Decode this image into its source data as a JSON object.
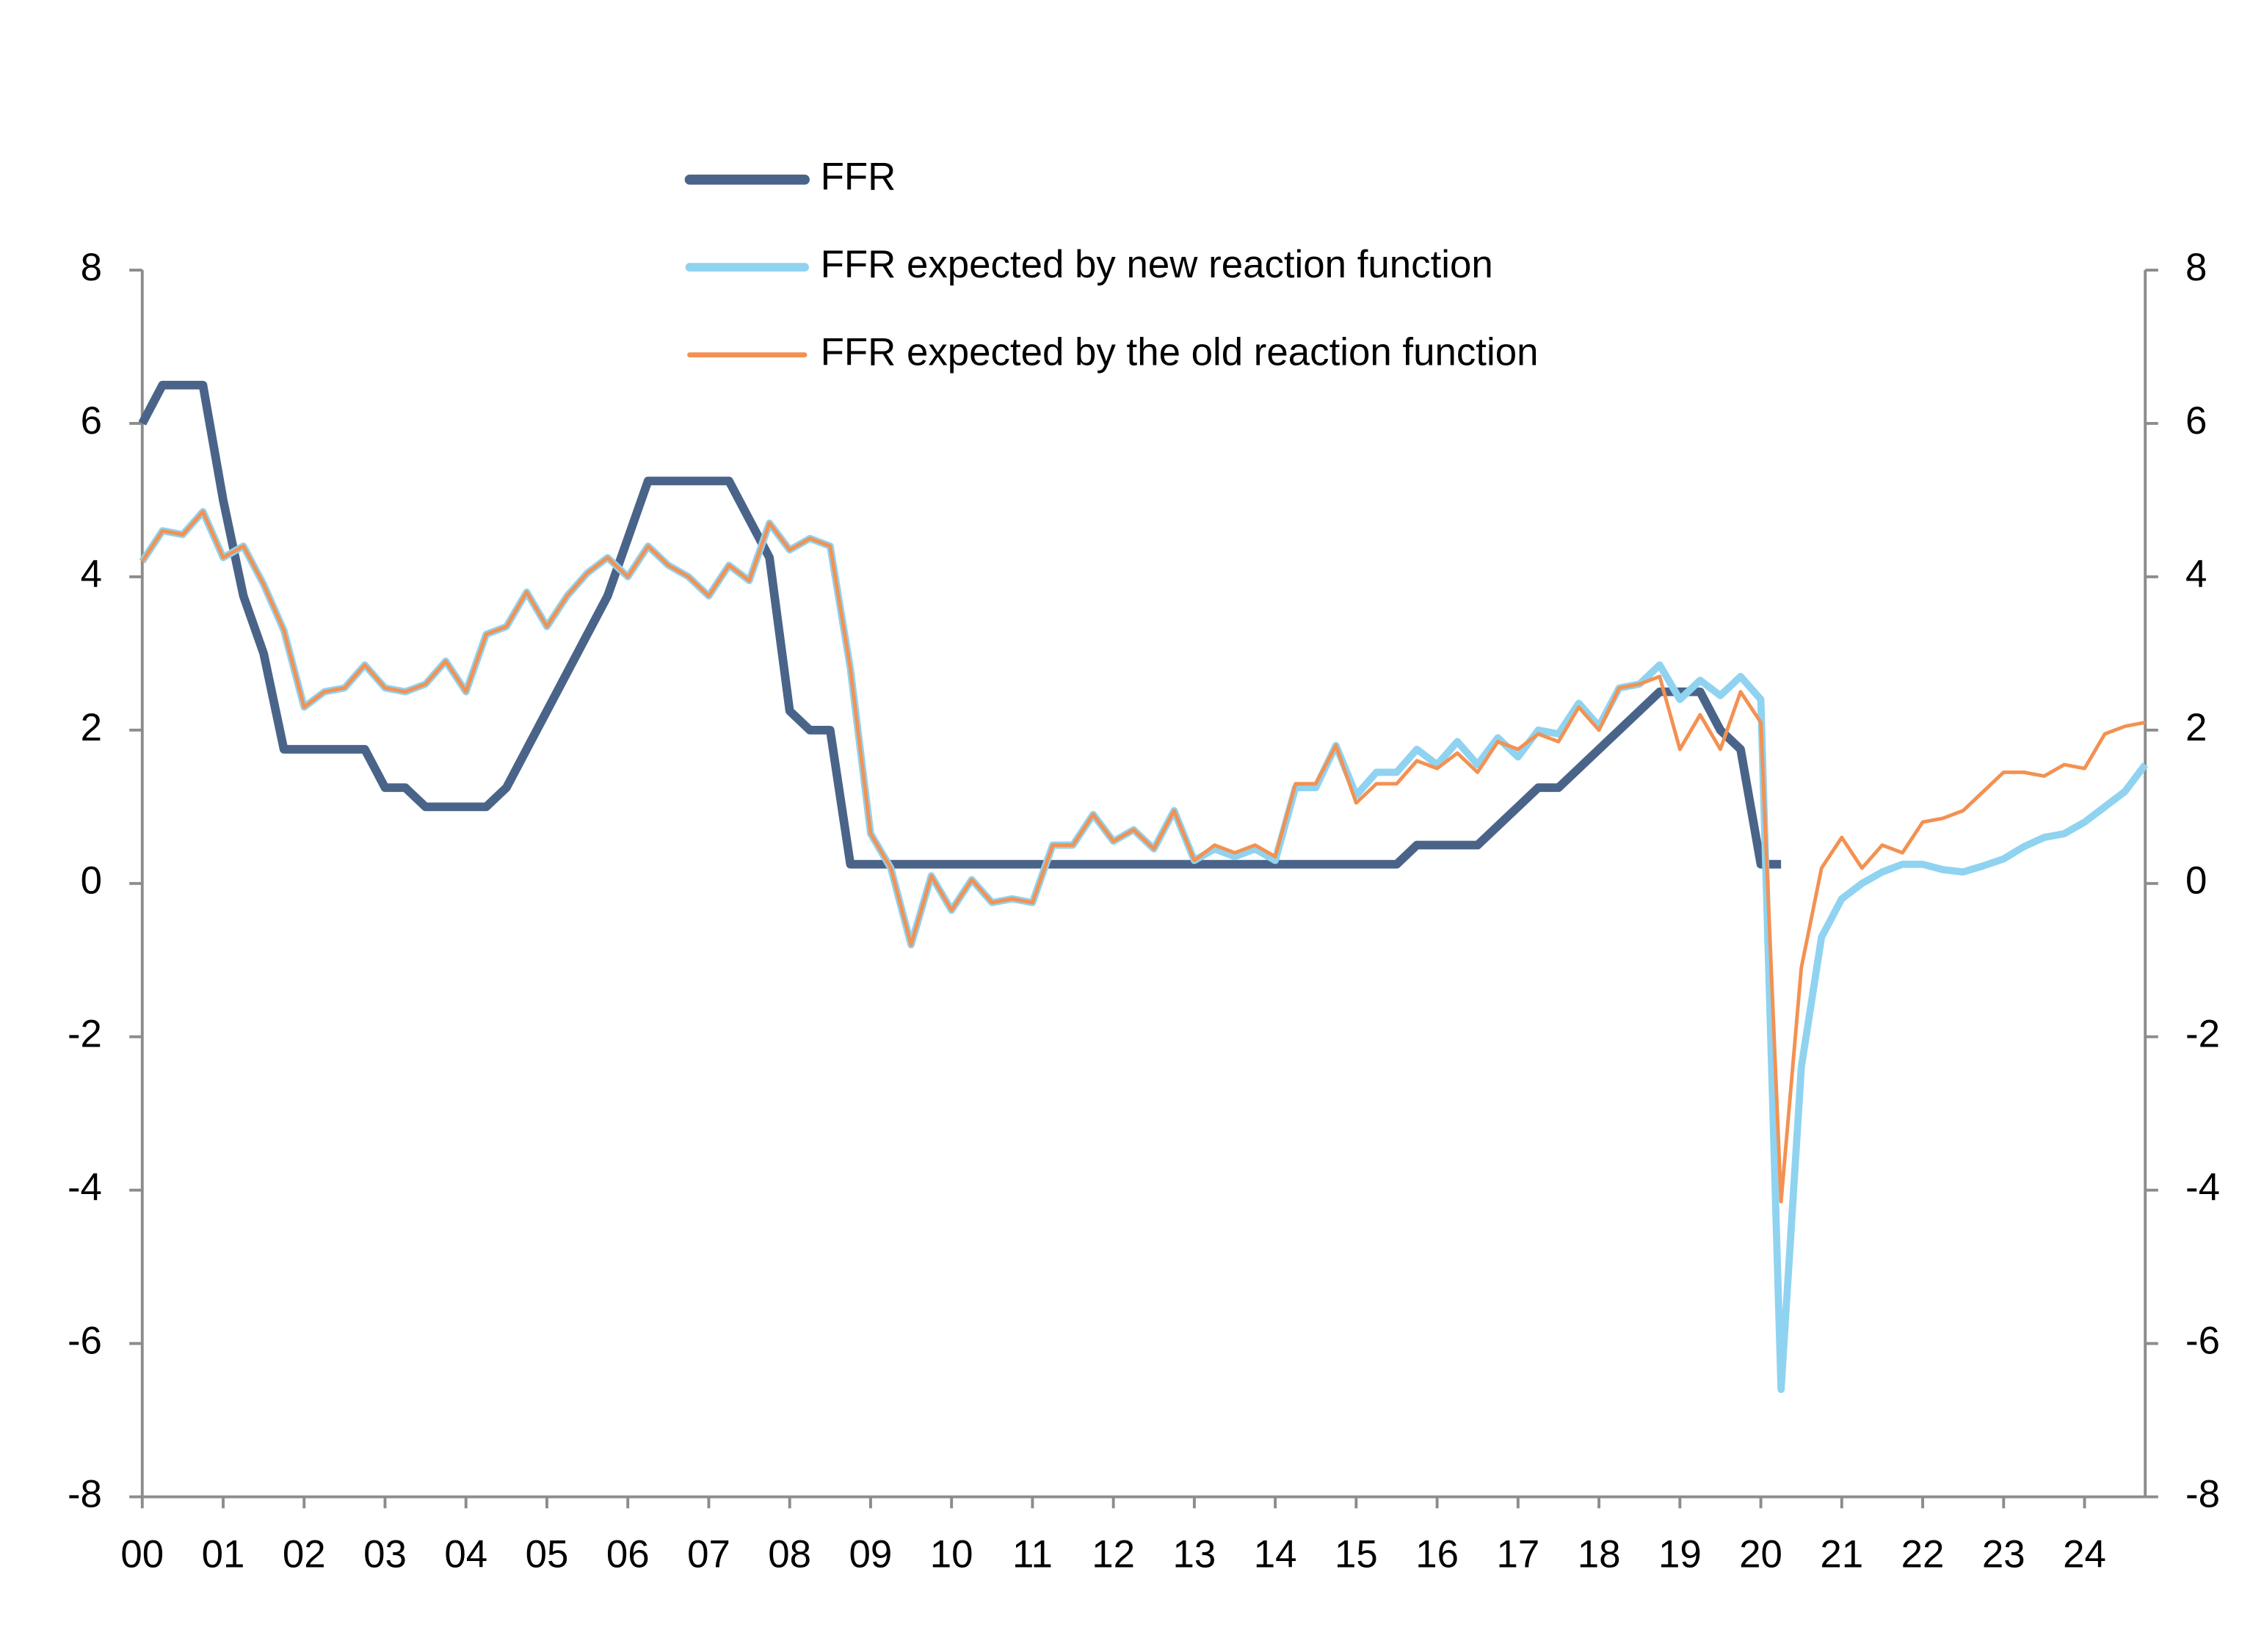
{
  "chart_data": {
    "type": "line",
    "categories": [
      "00",
      null,
      null,
      null,
      "01",
      null,
      null,
      null,
      "02",
      null,
      null,
      null,
      "03",
      null,
      null,
      null,
      "04",
      null,
      null,
      null,
      "05",
      null,
      null,
      null,
      "06",
      null,
      null,
      null,
      "07",
      null,
      null,
      null,
      "08",
      null,
      null,
      null,
      "09",
      null,
      null,
      null,
      "10",
      null,
      null,
      null,
      "11",
      null,
      null,
      null,
      "12",
      null,
      null,
      null,
      "13",
      null,
      null,
      null,
      "14",
      null,
      null,
      null,
      "15",
      null,
      null,
      null,
      "16",
      null,
      null,
      null,
      "17",
      null,
      null,
      null,
      "18",
      null,
      null,
      null,
      "19",
      null,
      null,
      null,
      "20",
      null,
      null,
      null,
      "21",
      null,
      null,
      null,
      "22",
      null,
      null,
      null,
      "23",
      null,
      null,
      null,
      "24",
      null,
      null,
      null
    ],
    "series": [
      {
        "name": "FFR",
        "color": "#4a6489",
        "values": [
          6.0,
          6.5,
          6.5,
          6.5,
          5.0,
          3.75,
          3.0,
          1.75,
          1.75,
          1.75,
          1.75,
          1.75,
          1.25,
          1.25,
          1.0,
          1.0,
          1.0,
          1.0,
          1.25,
          1.75,
          2.25,
          2.75,
          3.25,
          3.75,
          4.5,
          5.25,
          5.25,
          5.25,
          5.25,
          5.25,
          4.75,
          4.25,
          2.25,
          2.0,
          2.0,
          0.25,
          0.25,
          0.25,
          0.25,
          0.25,
          0.25,
          0.25,
          0.25,
          0.25,
          0.25,
          0.25,
          0.25,
          0.25,
          0.25,
          0.25,
          0.25,
          0.25,
          0.25,
          0.25,
          0.25,
          0.25,
          0.25,
          0.25,
          0.25,
          0.25,
          0.25,
          0.25,
          0.25,
          0.5,
          0.5,
          0.5,
          0.5,
          0.75,
          1.0,
          1.25,
          1.25,
          1.5,
          1.75,
          2.0,
          2.25,
          2.5,
          2.5,
          2.5,
          2.0,
          1.75,
          0.25,
          0.25,
          null,
          null,
          null,
          null,
          null,
          null,
          null,
          null,
          null,
          null,
          null,
          null,
          null,
          null,
          null,
          null,
          null,
          null
        ]
      },
      {
        "name": "FFR expected by new reaction function",
        "color": "#8fd3f0",
        "values": [
          4.2,
          4.6,
          4.55,
          4.85,
          4.25,
          4.4,
          3.9,
          3.3,
          2.3,
          2.5,
          2.55,
          2.85,
          2.55,
          2.5,
          2.6,
          2.9,
          2.5,
          3.25,
          3.35,
          3.8,
          3.35,
          3.75,
          4.05,
          4.25,
          4.0,
          4.4,
          4.15,
          4.0,
          3.75,
          4.15,
          3.95,
          4.7,
          4.35,
          4.5,
          4.4,
          2.8,
          0.65,
          0.2,
          -0.8,
          0.1,
          -0.35,
          0.05,
          -0.25,
          -0.2,
          -0.25,
          0.5,
          0.5,
          0.9,
          0.55,
          0.7,
          0.45,
          0.95,
          0.3,
          0.45,
          0.35,
          0.45,
          0.3,
          1.25,
          1.25,
          1.8,
          1.15,
          1.45,
          1.45,
          1.75,
          1.55,
          1.85,
          1.55,
          1.9,
          1.65,
          2.0,
          1.95,
          2.35,
          2.05,
          2.55,
          2.6,
          2.85,
          2.4,
          2.65,
          2.45,
          2.7,
          2.4,
          -6.6,
          -2.4,
          -0.7,
          -0.2,
          0.0,
          0.15,
          0.25,
          0.25,
          0.18,
          0.15,
          0.23,
          0.32,
          0.48,
          0.6,
          0.65,
          0.8,
          1.0,
          1.2,
          1.55
        ]
      },
      {
        "name": "FFR expected by the old reaction function",
        "color": "#f39152",
        "values": [
          4.2,
          4.6,
          4.55,
          4.85,
          4.25,
          4.4,
          3.9,
          3.3,
          2.3,
          2.5,
          2.55,
          2.85,
          2.55,
          2.5,
          2.6,
          2.9,
          2.5,
          3.25,
          3.35,
          3.8,
          3.35,
          3.75,
          4.05,
          4.25,
          4.0,
          4.4,
          4.15,
          4.0,
          3.75,
          4.15,
          3.95,
          4.7,
          4.35,
          4.5,
          4.4,
          2.8,
          0.65,
          0.2,
          -0.8,
          0.1,
          -0.35,
          0.05,
          -0.25,
          -0.2,
          -0.25,
          0.5,
          0.5,
          0.9,
          0.55,
          0.7,
          0.45,
          0.95,
          0.3,
          0.5,
          0.4,
          0.5,
          0.35,
          1.3,
          1.3,
          1.8,
          1.05,
          1.3,
          1.3,
          1.6,
          1.5,
          1.7,
          1.45,
          1.85,
          1.75,
          1.95,
          1.85,
          2.3,
          2.0,
          2.55,
          2.6,
          2.7,
          1.75,
          2.2,
          1.75,
          2.5,
          2.1,
          -4.15,
          -1.1,
          0.2,
          0.6,
          0.2,
          0.5,
          0.4,
          0.8,
          0.85,
          0.95,
          1.2,
          1.45,
          1.45,
          1.4,
          1.55,
          1.5,
          1.95,
          2.05,
          2.1
        ]
      }
    ],
    "ylim": [
      -8,
      8
    ],
    "yticks": [
      -8,
      -6,
      -4,
      -2,
      0,
      2,
      4,
      6,
      8
    ],
    "y2lim": [
      -8,
      8
    ],
    "y2ticks": [
      -8,
      -6,
      -4,
      -2,
      0,
      2,
      4,
      6,
      8
    ],
    "widths": [
      6,
      5,
      2.5
    ]
  }
}
